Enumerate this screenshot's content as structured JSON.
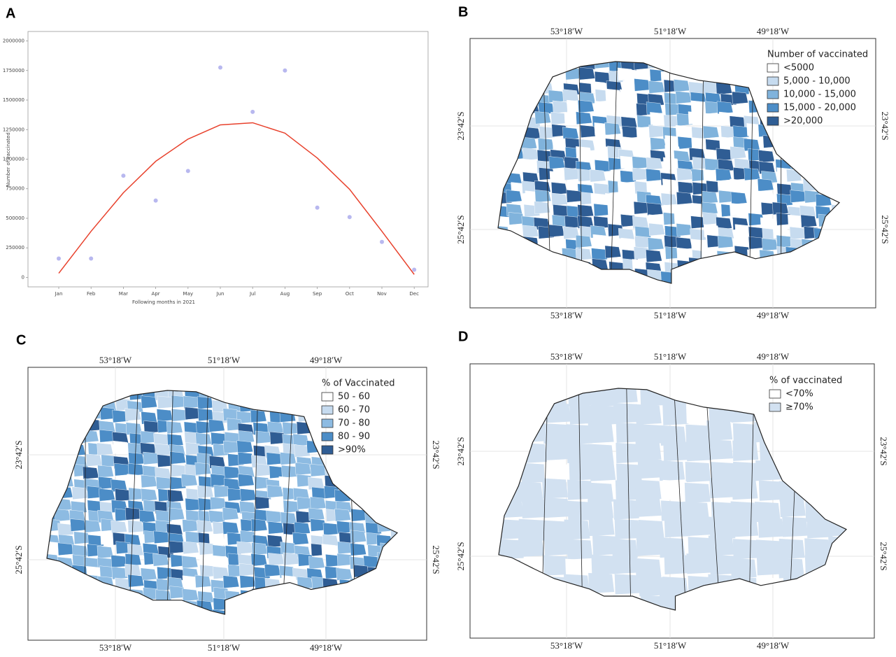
{
  "chart_data": {
    "type": "scatter",
    "panel": "A",
    "x_label": "Following months in 2021",
    "y_label": "Number of vaccinated",
    "categories": [
      "Jan",
      "Feb",
      "Mar",
      "Apr",
      "May",
      "Jun",
      "Jul",
      "Aug",
      "Sep",
      "Oct",
      "Nov",
      "Dec"
    ],
    "ylim": [
      -80000,
      2080000
    ],
    "yticks": [
      0,
      250000,
      500000,
      750000,
      1000000,
      1250000,
      1500000,
      1750000,
      2000000
    ],
    "series": [
      {
        "type": "scatter",
        "color": "#b8b8ef",
        "values": [
          160000,
          160000,
          860000,
          650000,
          900000,
          1775000,
          1400000,
          1750000,
          590000,
          510000,
          300000,
          65000
        ]
      },
      {
        "type": "line",
        "color": "#e8412c",
        "values": [
          35000,
          390000,
          716000,
          982000,
          1170000,
          1290000,
          1308000,
          1220000,
          1010000,
          745000,
          390000,
          25000
        ]
      }
    ]
  },
  "maps": [
    {
      "panel": "B",
      "lon_labels": [
        "53°18′W",
        "51°18′W",
        "49°18′W"
      ],
      "lat_labels": [
        "23°42′S",
        "25°42′S"
      ],
      "legend": {
        "title": "Number of vaccinated",
        "items": [
          {
            "label": "<5000",
            "color": "#ffffff"
          },
          {
            "label": "5,000 - 10,000",
            "color": "#c6dbef"
          },
          {
            "label": "10,000 - 15,000",
            "color": "#80b3dc"
          },
          {
            "label": "15,000 - 20,000",
            "color": "#4c8dc7"
          },
          {
            "label": ">20,000",
            "color": "#2f5d94"
          }
        ]
      }
    },
    {
      "panel": "C",
      "lon_labels": [
        "53°18′W",
        "51°18′W",
        "49°18′W"
      ],
      "lat_labels": [
        "23°42′S",
        "25°42′S"
      ],
      "legend": {
        "title": "% of Vaccinated",
        "items": [
          {
            "label": "50 - 60",
            "color": "#ffffff"
          },
          {
            "label": "60 - 70",
            "color": "#c6dbef"
          },
          {
            "label": "70 - 80",
            "color": "#8dbbe2"
          },
          {
            "label": "80 - 90",
            "color": "#4c8dc7"
          },
          {
            "label": ">90%",
            "color": "#2f5d94"
          }
        ]
      }
    },
    {
      "panel": "D",
      "lon_labels": [
        "53°18′W",
        "51°18′W",
        "49°18′W"
      ],
      "lat_labels": [
        "23°42′S",
        "25°42′S"
      ],
      "legend": {
        "title": "% of vaccinated",
        "items": [
          {
            "label": "<70%",
            "color": "#ffffff"
          },
          {
            "label": "≥70%",
            "color": "#d2e1f1"
          }
        ]
      }
    }
  ]
}
